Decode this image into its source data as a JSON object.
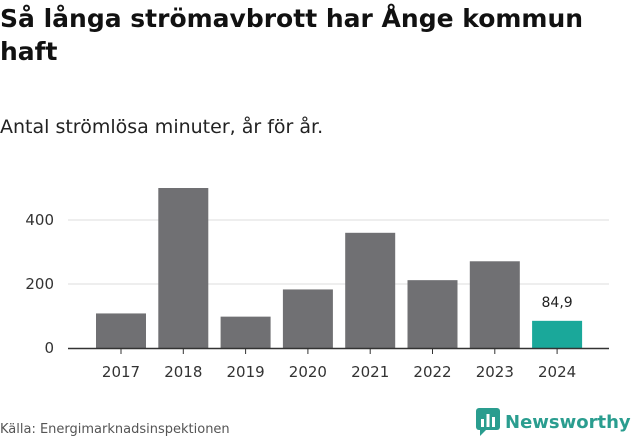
{
  "title": "Så långa strömavbrott har Ånge kommun haft",
  "subtitle": "Antal strömlösa minuter, år för år.",
  "source": "Källa: Energimarknadsinspektionen",
  "brand": {
    "name": "Newsworthy",
    "logo_icon": "newsworthy-chart-icon"
  },
  "colors": {
    "bar": "#707073",
    "highlight": "#1aa89a",
    "grid": "#dedede",
    "axis": "#333333"
  },
  "chart_data": {
    "type": "bar",
    "title": "Så långa strömavbrott har Ånge kommun haft",
    "subtitle": "Antal strömlösa minuter, år för år.",
    "categories": [
      "2017",
      "2018",
      "2019",
      "2020",
      "2021",
      "2022",
      "2023",
      "2024"
    ],
    "values": [
      108,
      500,
      98,
      183,
      360,
      212,
      271,
      84.9
    ],
    "highlight_index": 7,
    "data_labels": [
      {
        "index": 7,
        "text": "84,9"
      }
    ],
    "yticks": [
      0,
      200,
      400
    ],
    "ylim": [
      0,
      520
    ],
    "xlabel": "",
    "ylabel": "",
    "grid": true
  }
}
